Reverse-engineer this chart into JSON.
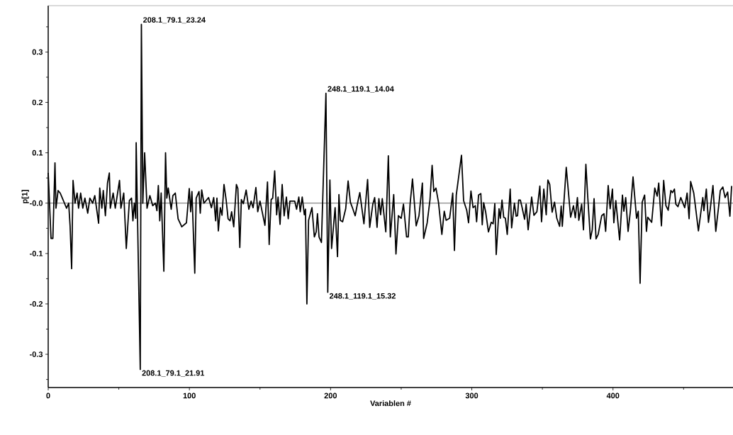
{
  "chart_data": {
    "type": "line",
    "xlabel": "Variablen #",
    "ylabel": "p[1]",
    "color": "#000000",
    "line_style": "solid",
    "marker": "none",
    "xlim": [
      0,
      485
    ],
    "ylim": [
      -0.366,
      0.392
    ],
    "xticks": [
      0,
      {
        "value": 50,
        "label": null
      },
      100,
      {
        "value": 150,
        "label": null
      },
      200,
      {
        "value": 250,
        "label": null
      },
      300,
      {
        "value": 350,
        "label": null
      },
      400,
      {
        "value": 450,
        "label": null
      }
    ],
    "yticks": [
      {
        "value": -0.35,
        "label": null
      },
      -0.3,
      {
        "value": -0.25,
        "label": null
      },
      -0.2,
      {
        "value": -0.15,
        "label": null
      },
      -0.1,
      {
        "value": -0.05,
        "label": null
      },
      {
        "value": 0,
        "label": "-0.0"
      },
      {
        "value": 0.05,
        "label": null
      },
      0.1,
      {
        "value": 0.15,
        "label": null
      },
      0.2,
      {
        "value": 0.25,
        "label": null
      },
      0.3,
      {
        "value": 0.35,
        "label": null
      }
    ],
    "ref_lines": [
      {
        "axis": "y",
        "value": 0,
        "color": "#000000"
      }
    ],
    "annotations": [
      {
        "text": "208.1_79.1_23.24",
        "x": 66,
        "y": 0.355
      },
      {
        "text": "248.1_119.1_14.04",
        "x": 196.7,
        "y": 0.218
      },
      {
        "text": "248.1_119.1_15.32",
        "x": 198,
        "y": -0.177
      },
      {
        "text": "208.1_79.1_21.91",
        "x": 65.2,
        "y": -0.33
      }
    ],
    "x": [
      0,
      2,
      3.3,
      4.8,
      5.5,
      7,
      8.5,
      10,
      11.5,
      13,
      14.5,
      15.5,
      16.6,
      17.6,
      19,
      20.5,
      21.5,
      23,
      24.5,
      26,
      28,
      29.5,
      31.5,
      33,
      35.7,
      36.5,
      38,
      39,
      40.5,
      42,
      43.3,
      44,
      46,
      47.5,
      50.5,
      51.5,
      53.5,
      55.3,
      57.5,
      59,
      60,
      61,
      62,
      62.3,
      65.2,
      66,
      67,
      68.3,
      70,
      72,
      74,
      76,
      77,
      78,
      79,
      80,
      81.9,
      83.1,
      84,
      85,
      87.1,
      88.3,
      90,
      92,
      94.6,
      97.9,
      99.9,
      100.9,
      101.8,
      103.8,
      104.8,
      106.8,
      107.7,
      108.7,
      110.3,
      113.6,
      115.6,
      117.2,
      118.6,
      119.5,
      120.5,
      121.9,
      123.1,
      124.5,
      126,
      127.4,
      128.8,
      129.9,
      131.4,
      133.3,
      134.3,
      135.7,
      136.8,
      138.2,
      140.2,
      142.1,
      143.7,
      145.1,
      147.1,
      148.4,
      150,
      153.5,
      155.3,
      156.5,
      157.9,
      159,
      160.4,
      161.8,
      162.8,
      164.2,
      165.7,
      167.1,
      168.7,
      170,
      171.2,
      174.6,
      175.9,
      177.5,
      178.5,
      179.9,
      181.4,
      182.2,
      183.2,
      184.4,
      186.8,
      188.5,
      189.8,
      190.7,
      191.8,
      193.5,
      196.7,
      198,
      199.5,
      200.7,
      203.2,
      204.9,
      205.9,
      206.9,
      208.5,
      210.7,
      212.4,
      214,
      215.7,
      217.4,
      219.1,
      220.7,
      223.6,
      226.2,
      227.7,
      229.9,
      231.2,
      232.9,
      234.2,
      235.4,
      236.6,
      239.1,
      240.9,
      242.3,
      244.7,
      246.3,
      248,
      250,
      251.6,
      253.8,
      255,
      256.3,
      258,
      260.6,
      262.6,
      265,
      265.9,
      268.4,
      270.4,
      271.9,
      273.1,
      274.6,
      276.4,
      278.8,
      280.5,
      281.8,
      284.3,
      286.5,
      287.7,
      289,
      292.7,
      294.2,
      296.4,
      297.7,
      299.4,
      300.9,
      302.5,
      303.4,
      304.8,
      306.4,
      307.4,
      308.4,
      309.8,
      311.8,
      313.8,
      315.1,
      316.3,
      317.3,
      319.3,
      320.2,
      321.4,
      322.6,
      323.8,
      325.1,
      327.2,
      328.2,
      330.2,
      331.4,
      332.4,
      333.2,
      334.4,
      335.5,
      337.4,
      338.5,
      339.9,
      342.4,
      344,
      346.1,
      348.2,
      349.4,
      351,
      352.7,
      353.9,
      355.2,
      356.9,
      358.6,
      360.2,
      362.2,
      363.3,
      364.1,
      366.9,
      370,
      372,
      373.3,
      374.8,
      375.8,
      377.8,
      379.1,
      380.8,
      382,
      384,
      385.3,
      386.6,
      388,
      389.5,
      392,
      393.6,
      394.8,
      396.6,
      398,
      399.6,
      400.6,
      402,
      404.7,
      406.7,
      407.7,
      409,
      410.7,
      412.3,
      414.2,
      416.7,
      417.9,
      419.2,
      420.7,
      422.4,
      423.7,
      424.6,
      427.4,
      429.6,
      431.3,
      432.4,
      434.3,
      435.9,
      437.5,
      439.1,
      441,
      442.2,
      443.5,
      444.5,
      446,
      448,
      450.8,
      452.5,
      453.9,
      455,
      457.2,
      458.5,
      460.5,
      463.6,
      464.4,
      466.1,
      467.6,
      468.9,
      470.8,
      472.8,
      474.8,
      476,
      477.8,
      479.4,
      481.2,
      482.8,
      484
    ],
    "values": [
      0.06,
      -0.07,
      -0.07,
      0.08,
      -0.01,
      0.025,
      0.02,
      0.01,
      0.0,
      -0.01,
      0.0,
      -0.045,
      -0.13,
      0.045,
      0.0,
      0.02,
      -0.01,
      0.02,
      -0.01,
      0.01,
      -0.02,
      0.01,
      0.0,
      0.015,
      -0.04,
      0.03,
      -0.01,
      0.025,
      -0.025,
      0.04,
      0.06,
      -0.01,
      0.02,
      -0.01,
      0.045,
      -0.01,
      0.02,
      -0.09,
      0.005,
      0.01,
      -0.035,
      0.0,
      -0.03,
      0.12,
      -0.33,
      0.355,
      0.0,
      0.1,
      -0.01,
      0.015,
      -0.005,
      0.0,
      -0.015,
      0.035,
      -0.035,
      0.02,
      -0.135,
      0.1,
      0.01,
      0.03,
      -0.012,
      0.015,
      0.02,
      -0.031,
      -0.047,
      -0.039,
      0.029,
      -0.017,
      0.023,
      -0.139,
      0.01,
      0.023,
      -0.02,
      0.026,
      0.0,
      0.011,
      -0.009,
      0.011,
      -0.035,
      0.01,
      -0.055,
      -0.009,
      -0.024,
      0.037,
      0.007,
      -0.031,
      -0.035,
      -0.017,
      -0.047,
      0.037,
      0.029,
      -0.088,
      0.007,
      -0.001,
      0.026,
      -0.012,
      0.004,
      -0.009,
      0.031,
      -0.017,
      0.004,
      -0.044,
      0.042,
      -0.082,
      0.007,
      0.01,
      0.064,
      -0.023,
      0.012,
      -0.042,
      0.037,
      -0.025,
      0.012,
      -0.031,
      0.004,
      0.004,
      -0.012,
      0.012,
      -0.017,
      0.012,
      -0.023,
      -0.012,
      -0.2,
      -0.034,
      -0.009,
      -0.067,
      -0.057,
      -0.021,
      -0.067,
      -0.078,
      0.218,
      -0.177,
      0.046,
      -0.09,
      -0.009,
      -0.106,
      0.017,
      -0.034,
      -0.037,
      -0.011,
      0.044,
      0.002,
      -0.011,
      -0.025,
      0.0,
      0.021,
      -0.041,
      0.047,
      -0.048,
      -0.002,
      0.011,
      -0.048,
      0.009,
      -0.023,
      0.009,
      -0.057,
      0.094,
      -0.067,
      0.017,
      -0.101,
      -0.025,
      -0.03,
      -0.002,
      -0.067,
      -0.067,
      -0.002,
      0.048,
      -0.045,
      -0.025,
      0.04,
      -0.07,
      -0.039,
      0.007,
      0.075,
      0.023,
      0.03,
      0.002,
      -0.062,
      -0.016,
      -0.034,
      -0.03,
      0.02,
      -0.094,
      0.016,
      0.095,
      0.005,
      -0.014,
      -0.039,
      0.024,
      -0.009,
      -0.005,
      -0.037,
      0.016,
      0.019,
      -0.043,
      0.001,
      -0.017,
      -0.057,
      -0.038,
      -0.041,
      -0.001,
      -0.102,
      -0.011,
      -0.03,
      0.006,
      -0.028,
      -0.03,
      -0.062,
      0.028,
      -0.049,
      0.0,
      -0.026,
      -0.025,
      0.006,
      0.006,
      -0.007,
      -0.032,
      -0.002,
      -0.053,
      0.012,
      -0.024,
      -0.017,
      0.034,
      -0.037,
      0.028,
      -0.023,
      0.046,
      0.037,
      -0.018,
      0.002,
      -0.03,
      -0.046,
      -0.006,
      -0.046,
      0.071,
      -0.028,
      -0.005,
      -0.029,
      0.011,
      -0.034,
      -0.002,
      -0.053,
      0.077,
      0.018,
      -0.071,
      -0.053,
      0.009,
      -0.071,
      -0.062,
      -0.025,
      -0.021,
      -0.056,
      0.035,
      -0.011,
      0.028,
      -0.039,
      0.005,
      -0.073,
      0.016,
      -0.016,
      0.011,
      -0.056,
      -0.016,
      0.052,
      -0.03,
      -0.016,
      -0.159,
      0.002,
      0.016,
      -0.056,
      -0.028,
      -0.038,
      0.03,
      0.014,
      0.04,
      -0.045,
      0.045,
      -0.005,
      -0.014,
      0.025,
      0.021,
      0.028,
      -0.002,
      -0.007,
      0.011,
      -0.009,
      0.02,
      -0.031,
      0.043,
      0.02,
      -0.009,
      -0.055,
      0.011,
      -0.015,
      0.028,
      -0.038,
      -0.011,
      0.035,
      -0.056,
      -0.007,
      0.025,
      0.032,
      0.011,
      0.022,
      -0.026,
      0.034
    ]
  }
}
